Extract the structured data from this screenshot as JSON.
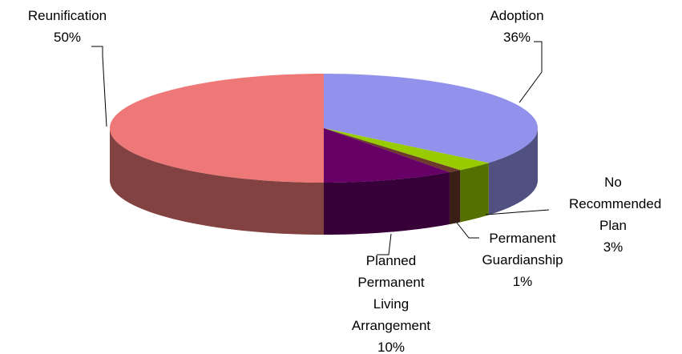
{
  "chart_data": {
    "type": "pie3d",
    "categories": [
      "Adoption",
      "No Recommended Plan",
      "Permanent Guardianship",
      "Planned Permanent Living Arrangement",
      "Reunification"
    ],
    "values": [
      36,
      3,
      1,
      10,
      50
    ],
    "value_labels": [
      "36%",
      "3%",
      "1%",
      "10%",
      "50%"
    ],
    "colors": [
      "#9292ec",
      "#99cc00",
      "#6b3a2a",
      "#660066",
      "#ee7878"
    ]
  }
}
